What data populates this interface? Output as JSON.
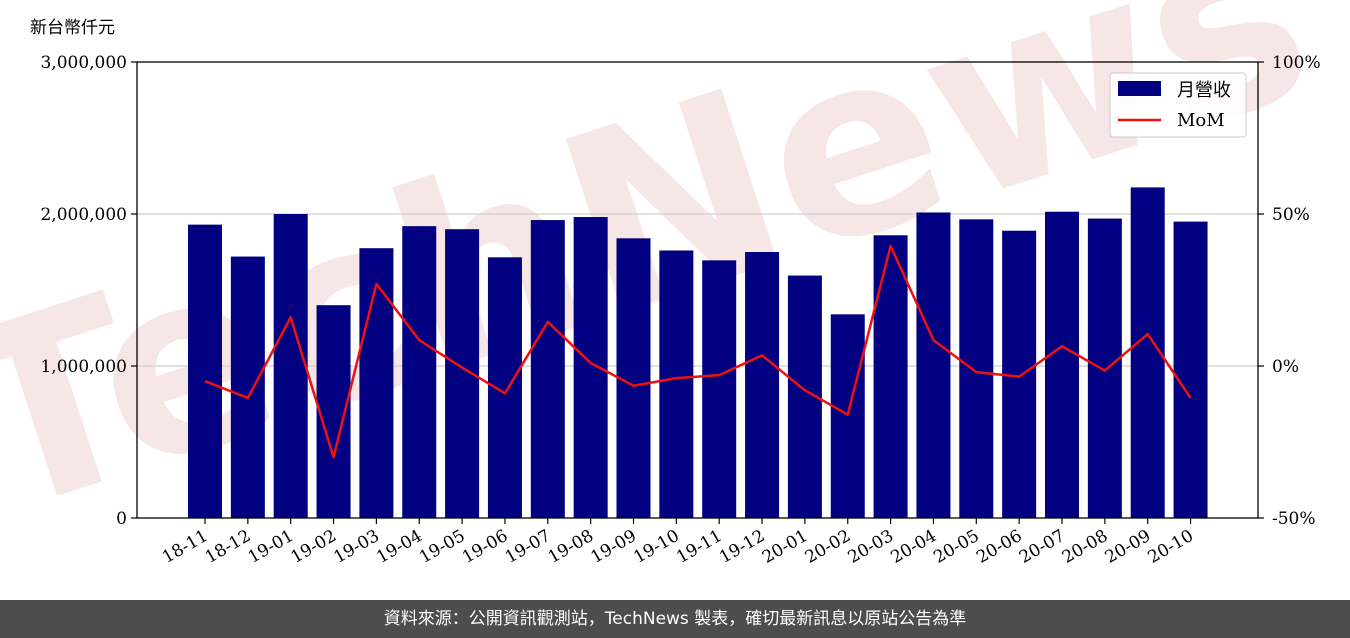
{
  "y_unit": "新台幣仟元",
  "footer_text": "資料來源：公開資訊觀測站，TechNews 製表，確切最新訊息以原站公告為準",
  "watermark_text": "TechNews",
  "colors": {
    "bar": "#000080",
    "line": "#ee1111",
    "footer_bg": "#4d4d4d"
  },
  "chart_data": {
    "type": "bar",
    "categories": [
      "18-11",
      "18-12",
      "19-01",
      "19-02",
      "19-03",
      "19-04",
      "19-05",
      "19-06",
      "19-07",
      "19-08",
      "19-09",
      "19-10",
      "19-11",
      "19-12",
      "20-01",
      "20-02",
      "20-03",
      "20-04",
      "20-05",
      "20-06",
      "20-07",
      "20-08",
      "20-09",
      "20-10"
    ],
    "series": [
      {
        "name": "月營收",
        "type": "bar",
        "axis": "left",
        "values": [
          1930000,
          1720000,
          2000000,
          1400000,
          1775000,
          1920000,
          1900000,
          1715000,
          1960000,
          1980000,
          1840000,
          1760000,
          1695000,
          1750000,
          1595000,
          1340000,
          1860000,
          2010000,
          1965000,
          1890000,
          2015000,
          1970000,
          2175000,
          1950000
        ]
      },
      {
        "name": "MoM",
        "type": "line",
        "axis": "right",
        "values": [
          -5,
          -10.5,
          16,
          -30,
          27,
          8.5,
          -0.5,
          -9,
          14.5,
          1,
          -6.5,
          -4,
          -3,
          3.5,
          -8,
          -16,
          39.5,
          8.5,
          -2,
          -3.5,
          6.5,
          -1.5,
          10.5,
          -10.5
        ]
      }
    ],
    "y_left": {
      "lim": [
        0,
        3000000
      ],
      "ticks": [
        0,
        1000000,
        2000000,
        3000000
      ],
      "tick_labels": [
        "0",
        "1,000,000",
        "2,000,000",
        "3,000,000"
      ]
    },
    "y_right": {
      "lim": [
        -50,
        100
      ],
      "ticks": [
        -50,
        0,
        50,
        100
      ],
      "tick_labels": [
        "-50%",
        "0%",
        "50%",
        "100%"
      ]
    },
    "grid": "horizontal",
    "legend_position": "top-right"
  }
}
